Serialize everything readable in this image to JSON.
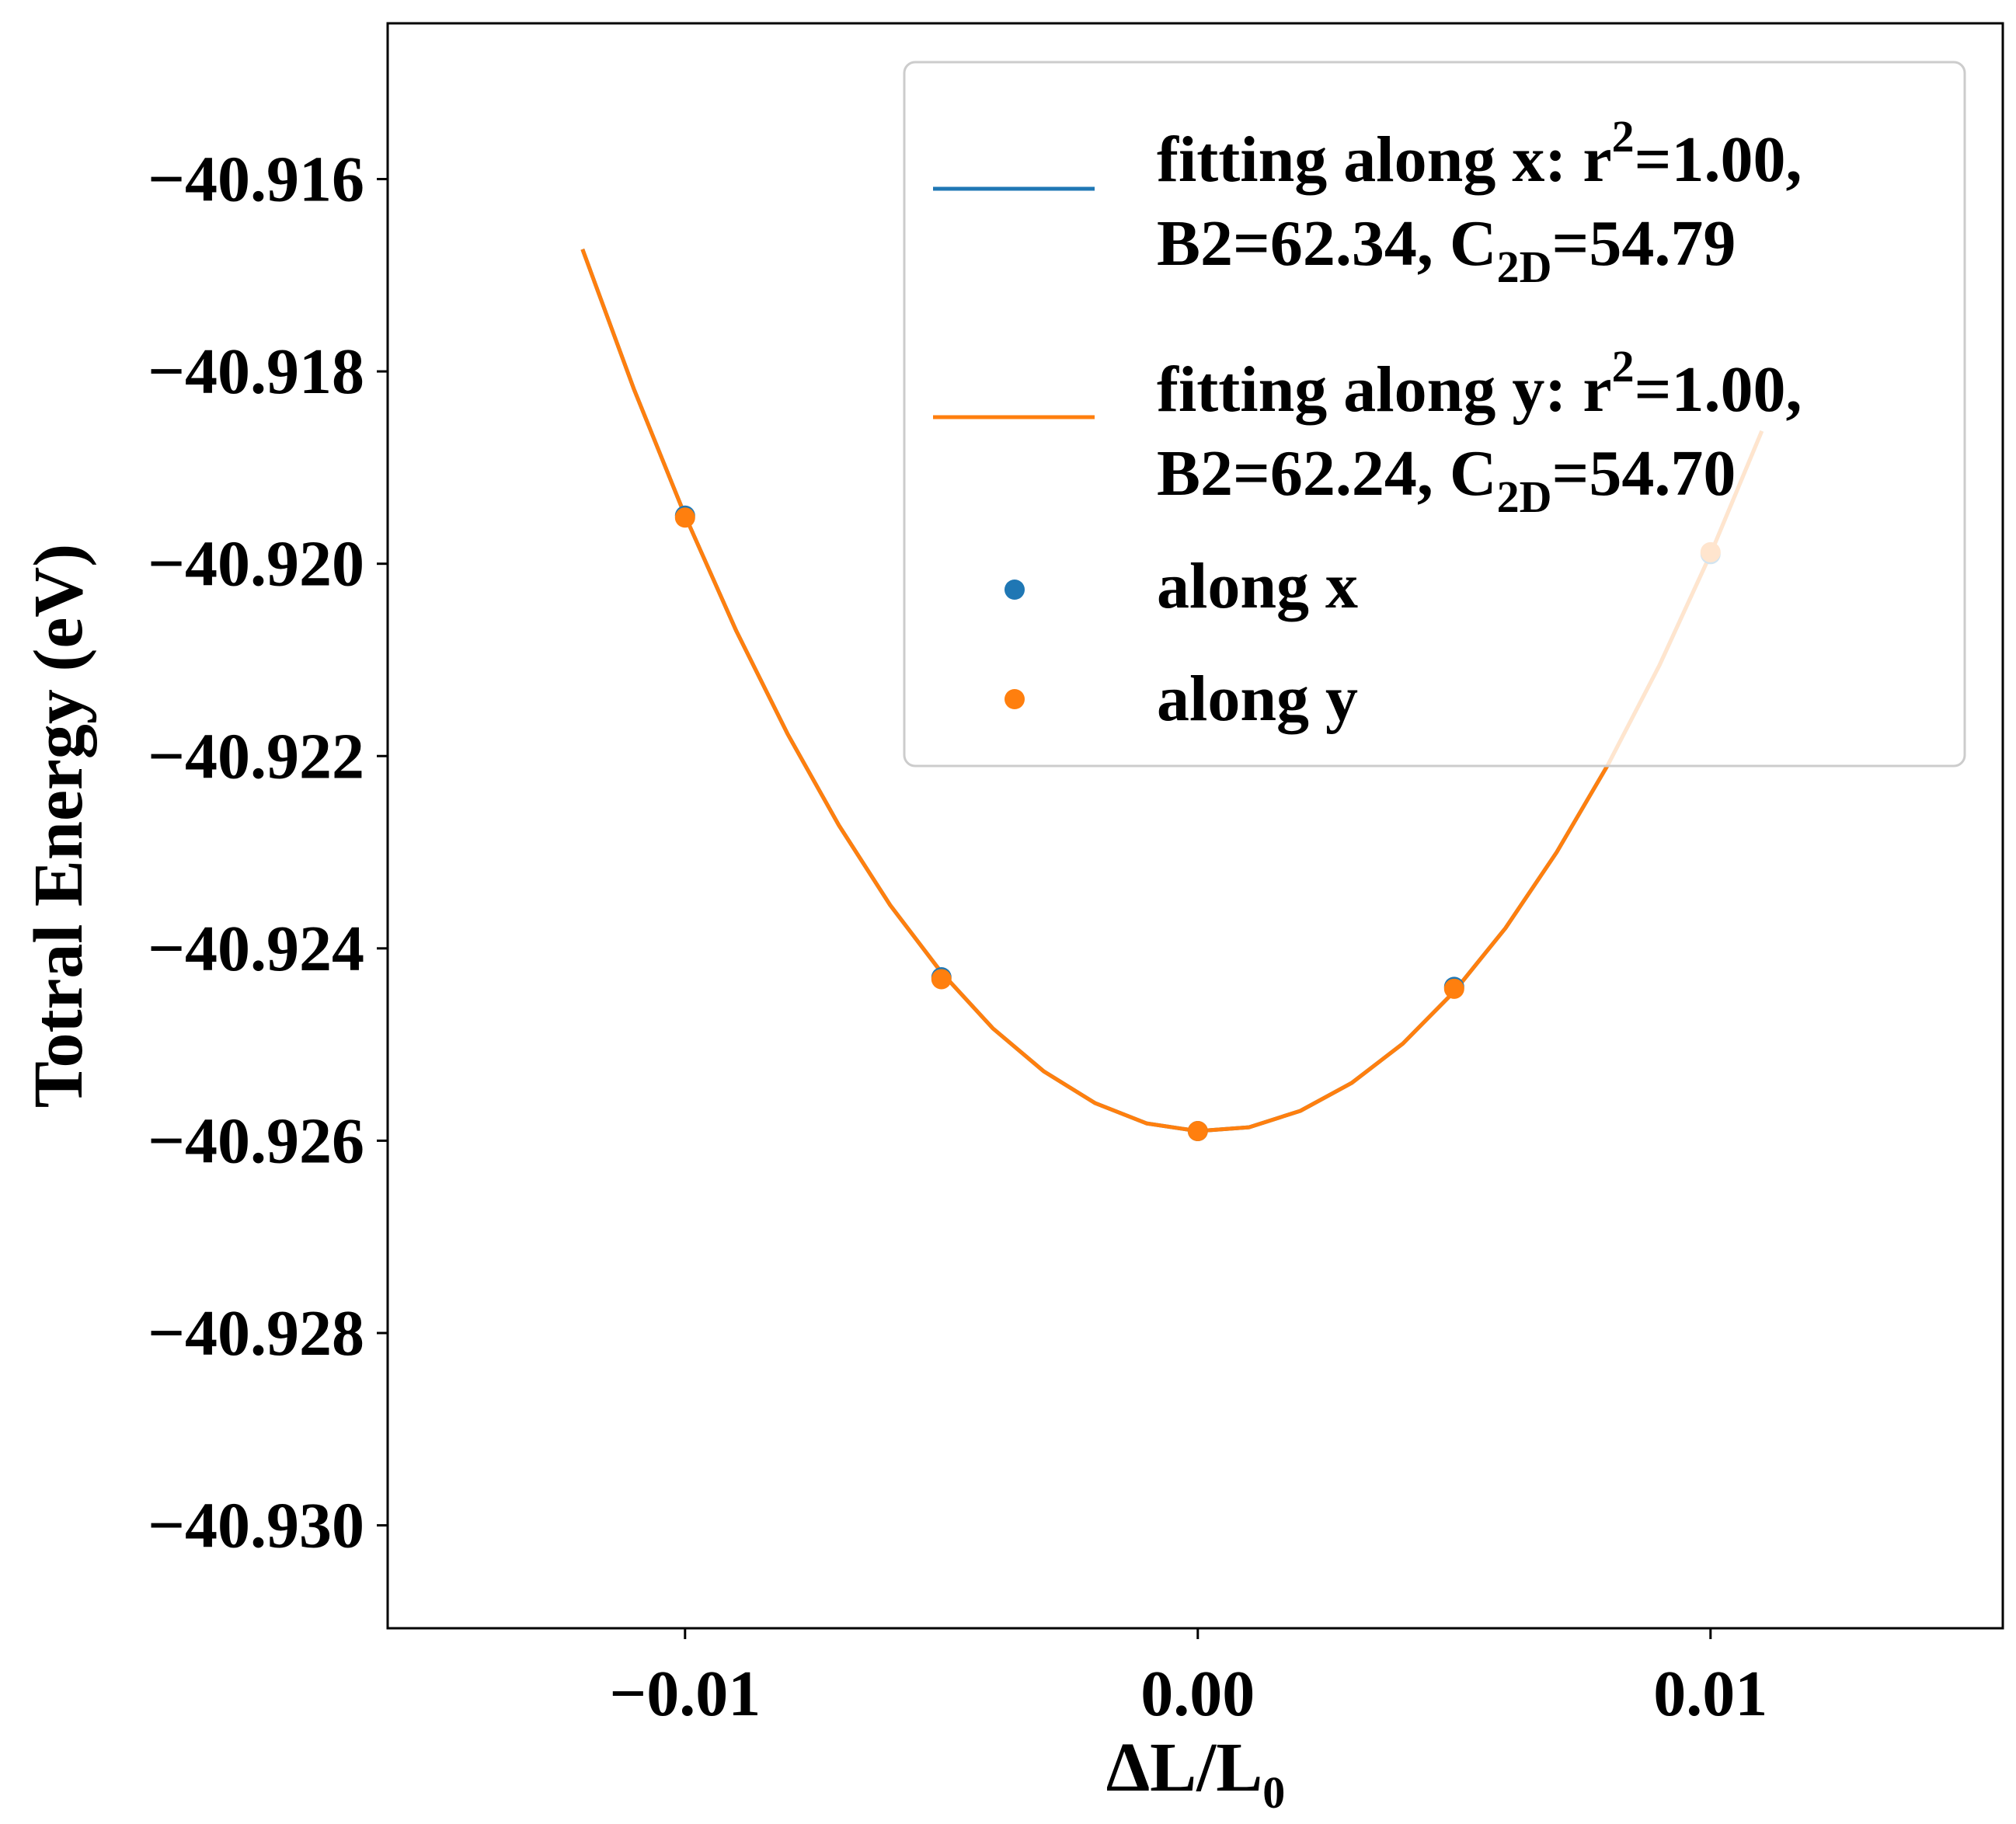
{
  "chart_data": {
    "type": "line",
    "xlabel": "ΔL/L",
    "xlabel_sub": "0",
    "ylabel": "Totral Energy (eV)",
    "xlim": [
      -0.0158,
      0.0157
    ],
    "ylim": [
      -40.93107,
      -40.91438
    ],
    "grid": false,
    "xticks": [
      -0.01,
      0.0,
      0.01
    ],
    "xtick_labels": [
      "−0.01",
      "0.00",
      "0.01"
    ],
    "yticks": [
      -40.916,
      -40.918,
      -40.92,
      -40.922,
      -40.924,
      -40.926,
      -40.928,
      -40.93
    ],
    "ytick_labels": [
      "−40.916",
      "−40.918",
      "−40.920",
      "−40.922",
      "−40.924",
      "−40.926",
      "−40.928",
      "−40.930"
    ],
    "legend_position": "top-right",
    "series": [
      {
        "name": "fitting along x",
        "kind": "line",
        "color": "#1f77b4",
        "legend": {
          "l1a": "fitting along x: r",
          "l1sup": "2",
          "l1b": "=1.00,",
          "l2a": "B2=62.34, C",
          "l2sub": "2D",
          "l2b": "=54.79"
        },
        "x": [
          -0.012,
          -0.011,
          -0.01,
          -0.009,
          -0.008,
          -0.007,
          -0.006,
          -0.005,
          -0.004,
          -0.003,
          -0.002,
          -0.001,
          0.0,
          0.001,
          0.002,
          0.003,
          0.004,
          0.005,
          0.006,
          0.007,
          0.008,
          0.009,
          0.01,
          0.011
        ],
        "y": [
          -40.91673,
          -40.91818,
          -40.9195,
          -40.9207,
          -40.92177,
          -40.92272,
          -40.92355,
          -40.92425,
          -40.92483,
          -40.92528,
          -40.92561,
          -40.92582,
          -40.9259,
          -40.92586,
          -40.92569,
          -40.9254,
          -40.92499,
          -40.92445,
          -40.92379,
          -40.923,
          -40.92209,
          -40.92106,
          -40.9199,
          -40.91862
        ]
      },
      {
        "name": "fitting along y",
        "kind": "line",
        "color": "#ff7f0e",
        "legend": {
          "l1a": "fitting along y: r",
          "l1sup": "2",
          "l1b": "=1.00,",
          "l2a": "B2=62.24, C",
          "l2sub": "2D",
          "l2b": "=54.70"
        },
        "x": [
          -0.012,
          -0.011,
          -0.01,
          -0.009,
          -0.008,
          -0.007,
          -0.006,
          -0.005,
          -0.004,
          -0.003,
          -0.002,
          -0.001,
          0.0,
          0.001,
          0.002,
          0.003,
          0.004,
          0.005,
          0.006,
          0.007,
          0.008,
          0.009,
          0.01,
          0.011
        ],
        "y": [
          -40.91673,
          -40.91818,
          -40.9195,
          -40.9207,
          -40.92177,
          -40.92272,
          -40.92355,
          -40.92425,
          -40.92483,
          -40.92528,
          -40.92561,
          -40.92582,
          -40.9259,
          -40.92586,
          -40.92569,
          -40.9254,
          -40.92499,
          -40.92445,
          -40.92379,
          -40.923,
          -40.92209,
          -40.92106,
          -40.9199,
          -40.91862
        ]
      },
      {
        "name": "along x",
        "kind": "scatter",
        "color": "#1f77b4",
        "x": [
          -0.01,
          -0.005,
          0.0,
          0.005,
          0.01
        ],
        "y": [
          -40.9195,
          -40.9243,
          -40.9259,
          -40.9244,
          -40.9199
        ]
      },
      {
        "name": "along y",
        "kind": "scatter",
        "color": "#ff7f0e",
        "x": [
          -0.01,
          -0.005,
          0.0,
          0.005,
          0.01
        ],
        "y": [
          -40.91952,
          -40.92432,
          -40.9259,
          -40.92442,
          -40.91988
        ]
      }
    ]
  }
}
